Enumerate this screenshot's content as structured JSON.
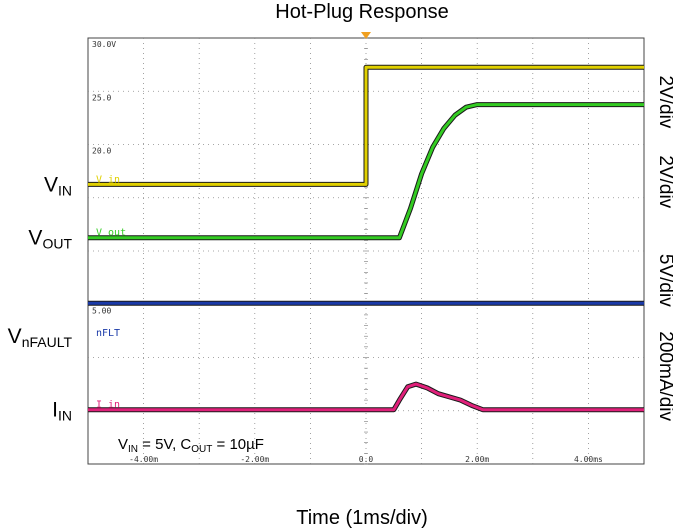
{
  "chart_data": {
    "type": "line",
    "title": "Hot-Plug Response",
    "xlabel": "Time (1ms/div)",
    "xlim": [
      -5,
      5
    ],
    "x_unit": "ms",
    "x_ticks": [
      {
        "value": -4,
        "label": "-4.00m"
      },
      {
        "value": -2,
        "label": "-2.00m"
      },
      {
        "value": 0,
        "label": "0.0"
      },
      {
        "value": 2,
        "label": "2.00m"
      },
      {
        "value": 4,
        "label": "4.00ms"
      }
    ],
    "y_divisions": 8,
    "y_grid_labels": [
      {
        "div": 0,
        "label": "30.0V"
      },
      {
        "div": 1,
        "label": "25.0"
      },
      {
        "div": 2,
        "label": "20.0"
      },
      {
        "div": 5,
        "label": "5.00"
      }
    ],
    "annotation": {
      "main": "V",
      "sub": "IN",
      "mid": " = 5V, C",
      "sub2": "OUT",
      "tail": " = 10µF"
    },
    "series": [
      {
        "name": "V_in",
        "label_main": "V",
        "label_sub": "IN",
        "scope_tag": "V_in",
        "scale": "2V/div",
        "color": "#e0d000",
        "x": [
          -5,
          0,
          0,
          0.1,
          5
        ],
        "y_div": [
          2.75,
          2.75,
          0.55,
          0.55,
          0.55
        ]
      },
      {
        "name": "V_out",
        "label_main": "V",
        "label_sub": "OUT",
        "scope_tag": "V_out",
        "scale": "2V/div",
        "color": "#33cc22",
        "x": [
          -5,
          0.6,
          0.8,
          1.0,
          1.2,
          1.4,
          1.6,
          1.8,
          2.0,
          5
        ],
        "y_div": [
          3.75,
          3.75,
          3.2,
          2.55,
          2.05,
          1.7,
          1.45,
          1.3,
          1.25,
          1.25
        ]
      },
      {
        "name": "nFLT",
        "label_main": "V",
        "label_sub": "nFAULT",
        "scope_tag": "nFLT",
        "scale": "5V/div",
        "color": "#1a3aa8",
        "x": [
          -5,
          5
        ],
        "y_div": [
          4.98,
          4.98
        ]
      },
      {
        "name": "I_in",
        "label_main": "I",
        "label_sub": "IN",
        "scope_tag": "I_in",
        "scale": "200mA/div",
        "color": "#e0207a",
        "x": [
          -5,
          0.5,
          0.6,
          0.75,
          0.9,
          1.1,
          1.3,
          1.5,
          1.7,
          1.9,
          2.1,
          5
        ],
        "y_div": [
          6.98,
          6.98,
          6.8,
          6.55,
          6.5,
          6.57,
          6.68,
          6.74,
          6.8,
          6.9,
          6.98,
          6.98
        ]
      }
    ],
    "scales_order": [
      "2V/div",
      "2V/div",
      "5V/div",
      "200mA/div"
    ]
  }
}
